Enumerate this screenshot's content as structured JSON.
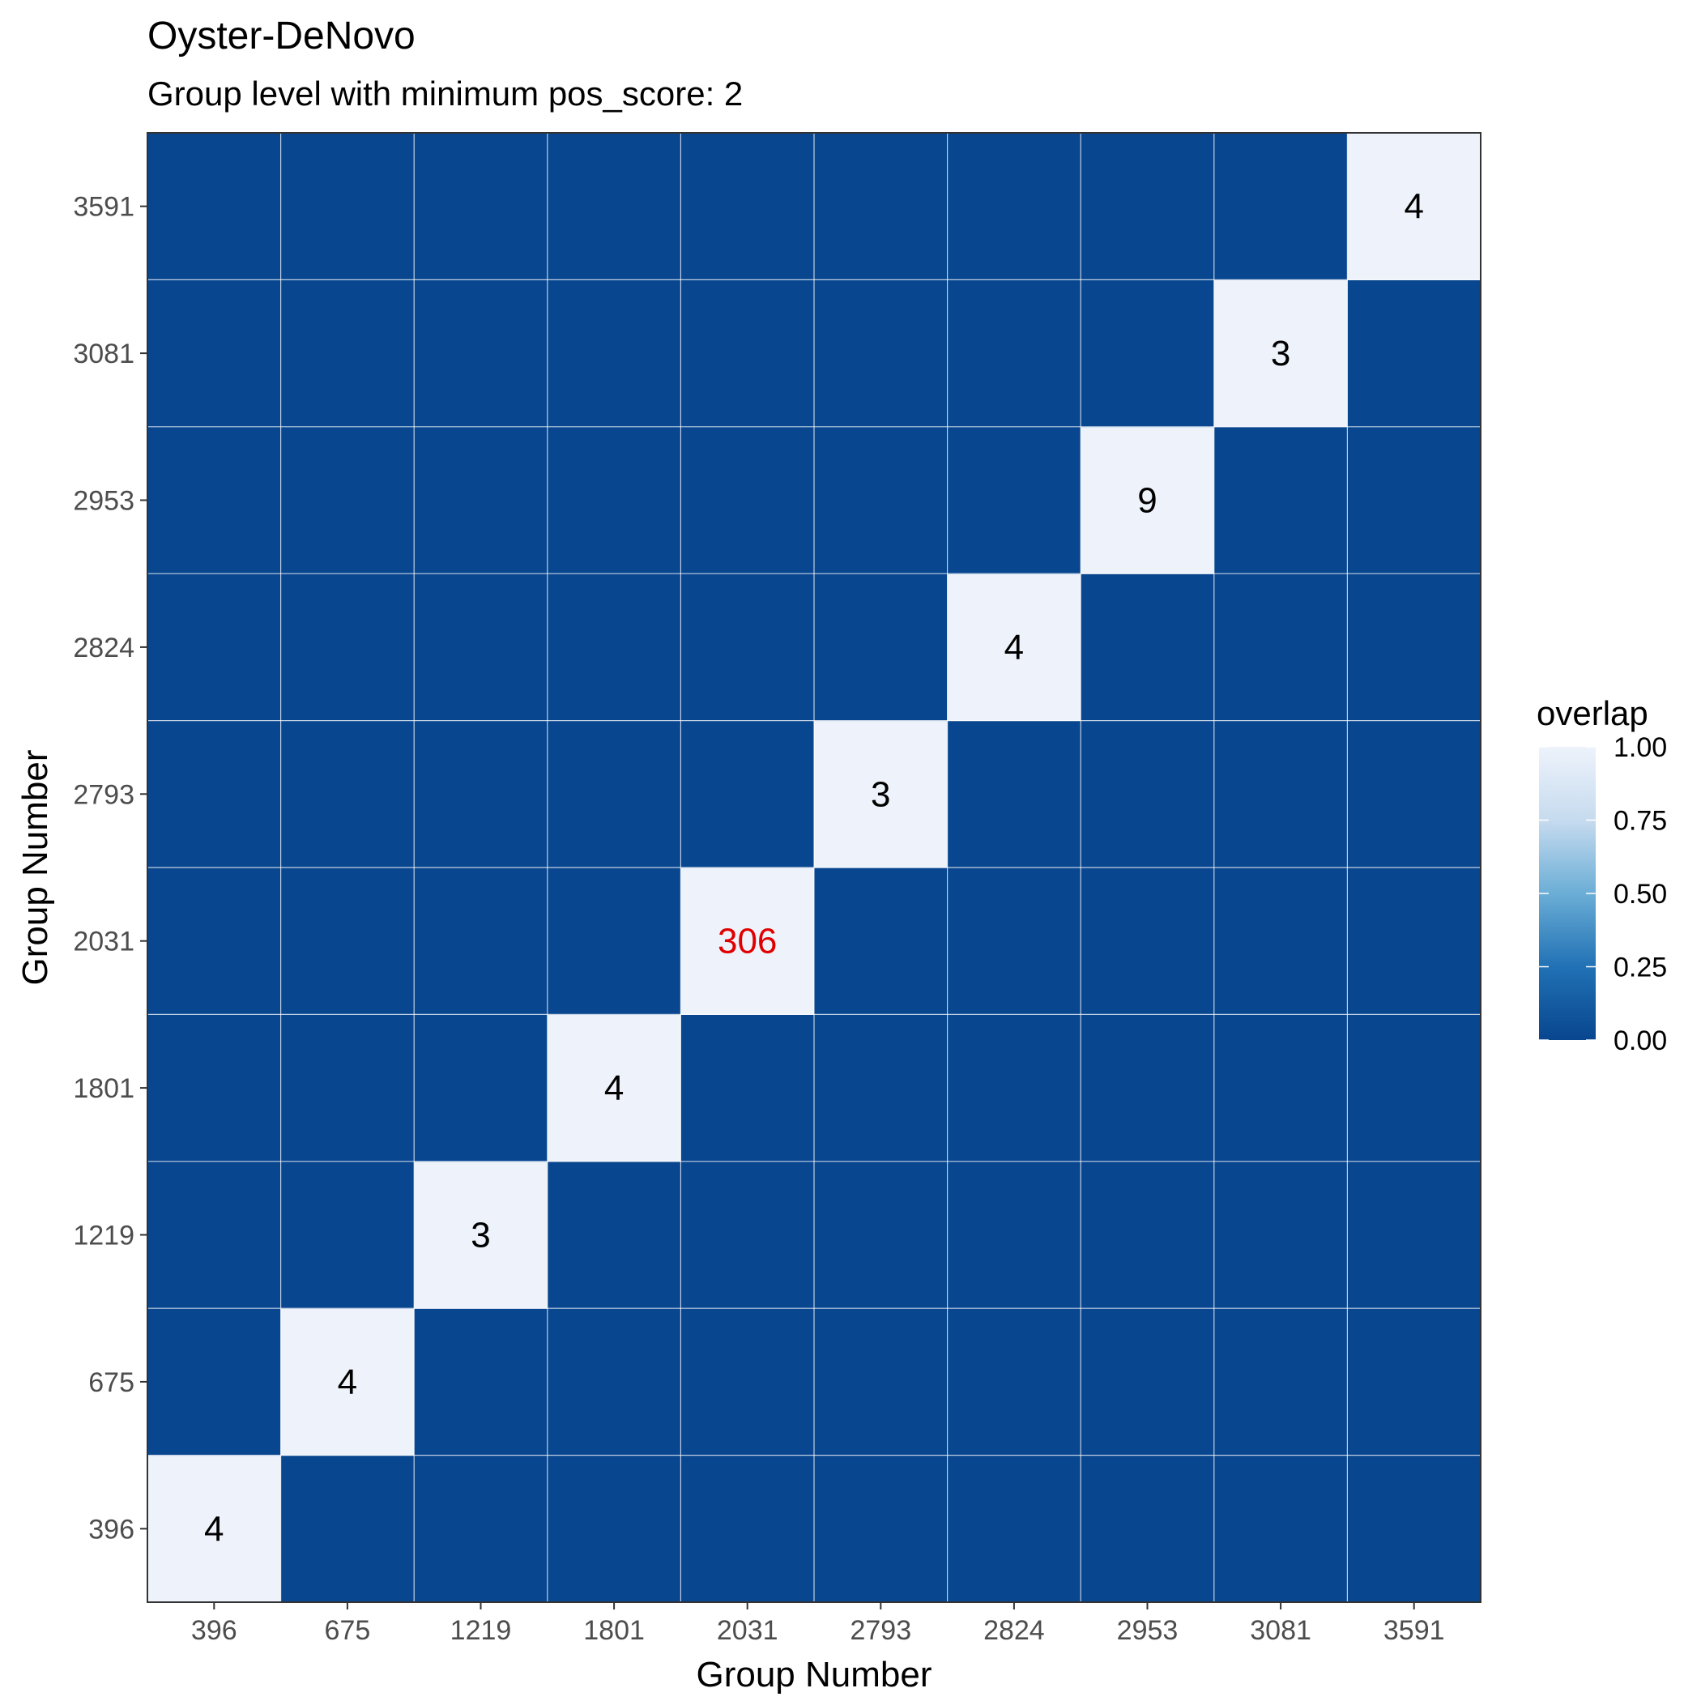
{
  "chart_data": {
    "type": "heatmap",
    "title": "Oyster-DeNovo",
    "subtitle": "Group level with minimum pos_score: 2",
    "xlabel": "Group Number",
    "ylabel": "Group Number",
    "categories": [
      "396",
      "675",
      "1219",
      "1801",
      "2031",
      "2793",
      "2824",
      "2953",
      "3081",
      "3591"
    ],
    "cells": [
      {
        "x": "396",
        "y": "396",
        "value": 1.0,
        "label": "4"
      },
      {
        "x": "675",
        "y": "675",
        "value": 1.0,
        "label": "4"
      },
      {
        "x": "1219",
        "y": "1219",
        "value": 1.0,
        "label": "3"
      },
      {
        "x": "1801",
        "y": "1801",
        "value": 1.0,
        "label": "4"
      },
      {
        "x": "2031",
        "y": "2031",
        "value": 1.0,
        "label": "306",
        "highlight": true
      },
      {
        "x": "2793",
        "y": "2793",
        "value": 1.0,
        "label": "3"
      },
      {
        "x": "2824",
        "y": "2824",
        "value": 1.0,
        "label": "4"
      },
      {
        "x": "2953",
        "y": "2953",
        "value": 1.0,
        "label": "9"
      },
      {
        "x": "3081",
        "y": "3081",
        "value": 1.0,
        "label": "3"
      },
      {
        "x": "3591",
        "y": "3591",
        "value": 1.0,
        "label": "4"
      }
    ],
    "default_value": 0.0,
    "legend": {
      "title": "overlap",
      "ticks": [
        "0.00",
        "0.25",
        "0.50",
        "0.75",
        "1.00"
      ],
      "range": [
        0,
        1
      ],
      "placement": "right"
    },
    "colors": {
      "low": "#08468F",
      "mid1": "#2171b5",
      "mid2": "#6baed6",
      "mid3": "#c6dbef",
      "high": "#EEF3FB",
      "label_normal": "#000000",
      "label_highlight": "#E00000"
    },
    "grid": true
  }
}
